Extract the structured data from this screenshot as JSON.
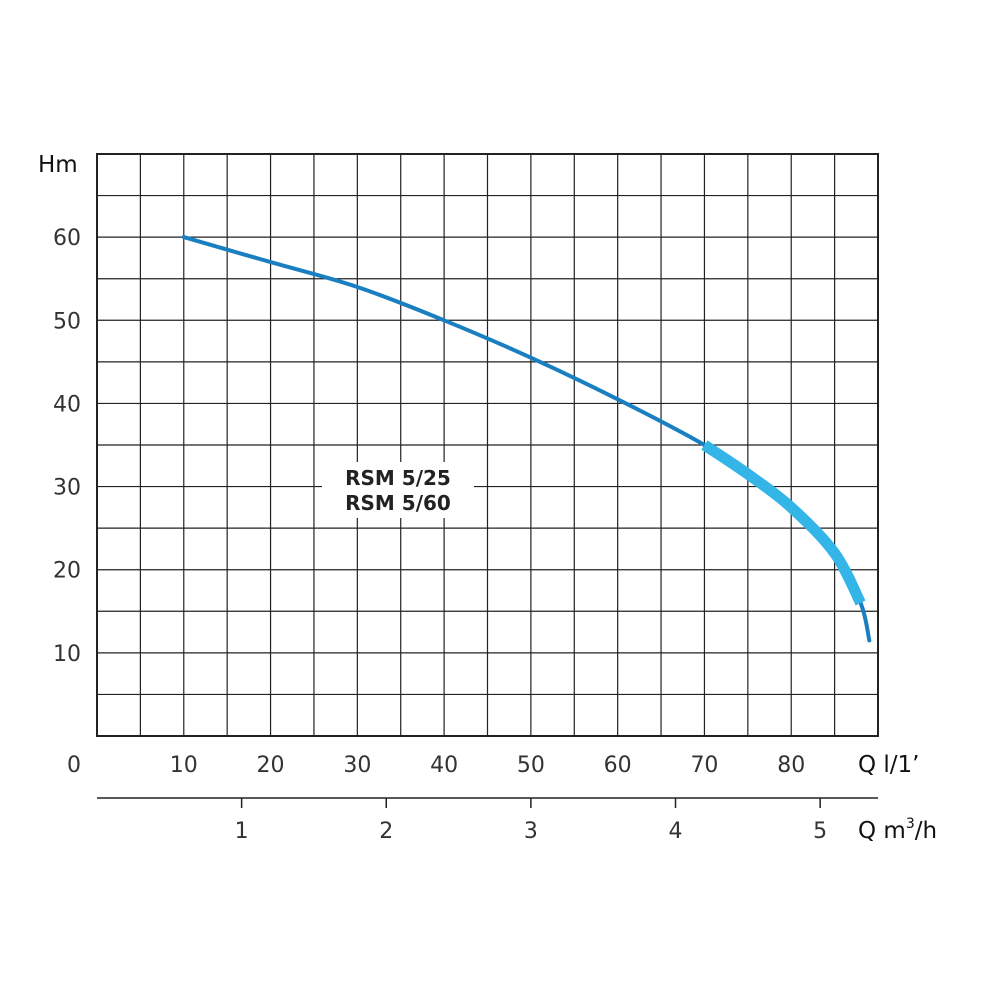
{
  "chart_data": {
    "type": "line",
    "ylabel": "Hm",
    "xlabel": "Q l/1’",
    "x2label_prefix": "Q m",
    "x2label_sup": "3",
    "x2label_suffix": "/h",
    "x_origin_label": "0",
    "xlim": [
      0,
      90
    ],
    "ylim": [
      0,
      70
    ],
    "x_gridlines": [
      0,
      5,
      10,
      15,
      20,
      25,
      30,
      35,
      40,
      45,
      50,
      55,
      60,
      65,
      70,
      75,
      80,
      85,
      90
    ],
    "y_gridlines": [
      0,
      5,
      10,
      15,
      20,
      25,
      30,
      35,
      40,
      45,
      50,
      55,
      60,
      65,
      70
    ],
    "x_ticks": [
      {
        "value": 10,
        "label": "10"
      },
      {
        "value": 20,
        "label": "20"
      },
      {
        "value": 30,
        "label": "30"
      },
      {
        "value": 40,
        "label": "40"
      },
      {
        "value": 50,
        "label": "50"
      },
      {
        "value": 60,
        "label": "60"
      },
      {
        "value": 70,
        "label": "70"
      },
      {
        "value": 80,
        "label": "80"
      }
    ],
    "y_ticks": [
      {
        "value": 10,
        "label": "10"
      },
      {
        "value": 20,
        "label": "20"
      },
      {
        "value": 30,
        "label": "30"
      },
      {
        "value": 40,
        "label": "40"
      },
      {
        "value": 50,
        "label": "50"
      },
      {
        "value": 60,
        "label": "60"
      }
    ],
    "x2_ticks": [
      {
        "value": 1,
        "label": "1"
      },
      {
        "value": 2,
        "label": "2"
      },
      {
        "value": 3,
        "label": "3"
      },
      {
        "value": 4,
        "label": "4"
      },
      {
        "value": 5,
        "label": "5"
      }
    ],
    "x2_per_x": 0.06,
    "grid": true,
    "curve_labels": [
      "RSM 5/25",
      "RSM 5/60"
    ],
    "series": [
      {
        "x": [
          10,
          20,
          30,
          40,
          50,
          60,
          70,
          75,
          80,
          85,
          88,
          89
        ],
        "y": [
          60,
          57,
          54,
          50,
          45.5,
          40.5,
          35,
          31.5,
          27.5,
          22,
          16,
          11.5
        ]
      }
    ],
    "highlight_range": {
      "x": [
        70,
        88
      ]
    },
    "colors": {
      "curve": "#1a7fc1",
      "highlight": "#33b5e8",
      "grid": "#222222"
    }
  }
}
